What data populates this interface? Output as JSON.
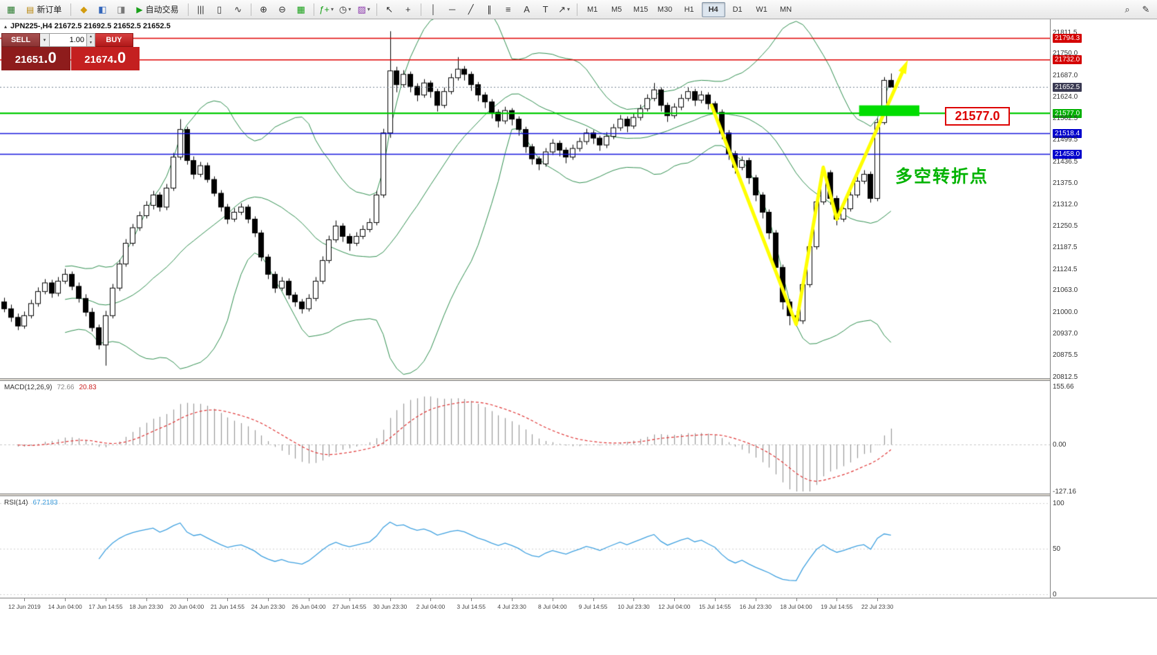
{
  "icons": {
    "caret_down": "▾",
    "caret_up": "▴",
    "spin_up": "▲",
    "spin_down": "▼"
  },
  "toolbar": {
    "new_order_label": "新订单",
    "auto_trading_label": "自动交易",
    "timeframes": [
      "M1",
      "M5",
      "M15",
      "M30",
      "H1",
      "H4",
      "D1",
      "W1",
      "MN"
    ],
    "active_timeframe": "H4",
    "items": [
      {
        "t": "icon",
        "name": "new-chart-icon",
        "glyph": "▦",
        "color": "#2e7d32"
      },
      {
        "t": "btn",
        "name": "new-order-button",
        "glyph": "▤",
        "color": "#b8860b",
        "label_key": "new_order_label"
      },
      {
        "t": "sep"
      },
      {
        "t": "icon",
        "name": "market-watch-icon",
        "glyph": "◆",
        "color": "#d39c10"
      },
      {
        "t": "icon",
        "name": "navigator-icon",
        "glyph": "◧",
        "color": "#3366bb"
      },
      {
        "t": "icon",
        "name": "terminal-icon",
        "glyph": "◨",
        "color": "#777777"
      },
      {
        "t": "btn",
        "name": "auto-trading-button",
        "glyph": "▶",
        "color": "#18a018",
        "label_key": "auto_trading_label"
      },
      {
        "t": "sep"
      },
      {
        "t": "icon",
        "name": "bar-chart-type-icon",
        "glyph": "|||",
        "color": "#333333"
      },
      {
        "t": "icon",
        "name": "candlestick-type-icon",
        "glyph": "▯",
        "color": "#333333"
      },
      {
        "t": "icon",
        "name": "line-chart-type-icon",
        "glyph": "∿",
        "color": "#333333"
      },
      {
        "t": "sep"
      },
      {
        "t": "icon",
        "name": "zoom-in-icon",
        "glyph": "⊕",
        "color": "#333333"
      },
      {
        "t": "icon",
        "name": "zoom-out-icon",
        "glyph": "⊖",
        "color": "#333333"
      },
      {
        "t": "icon",
        "name": "tile-windows-icon",
        "glyph": "▦",
        "color": "#18a018"
      },
      {
        "t": "sep"
      },
      {
        "t": "icon",
        "name": "indicators-icon",
        "glyph": "ƒ+",
        "color": "#18a018",
        "caret": true
      },
      {
        "t": "icon",
        "name": "periods-icon",
        "glyph": "◷",
        "color": "#333333",
        "caret": true
      },
      {
        "t": "icon",
        "name": "templates-icon",
        "glyph": "▨",
        "color": "#8833aa",
        "caret": true
      },
      {
        "t": "sep"
      },
      {
        "t": "icon",
        "name": "cursor-icon",
        "glyph": "↖",
        "color": "#333333"
      },
      {
        "t": "icon",
        "name": "crosshair-icon",
        "glyph": "+",
        "color": "#333333"
      },
      {
        "t": "sep"
      },
      {
        "t": "icon",
        "name": "vertical-line-icon",
        "glyph": "│",
        "color": "#333333"
      },
      {
        "t": "icon",
        "name": "horizontal-line-icon",
        "glyph": "─",
        "color": "#333333"
      },
      {
        "t": "icon",
        "name": "trendline-icon",
        "glyph": "╱",
        "color": "#333333"
      },
      {
        "t": "icon",
        "name": "channel-icon",
        "glyph": "∥",
        "color": "#333333"
      },
      {
        "t": "icon",
        "name": "fibonacci-icon",
        "glyph": "≡",
        "color": "#333333"
      },
      {
        "t": "icon",
        "name": "text-icon",
        "glyph": "A",
        "color": "#333333"
      },
      {
        "t": "icon",
        "name": "text-label-icon",
        "glyph": "T",
        "color": "#333333"
      },
      {
        "t": "icon",
        "name": "arrows-icon",
        "glyph": "↗",
        "color": "#333333",
        "caret": true
      },
      {
        "t": "sep"
      },
      {
        "t": "tfgroup"
      },
      {
        "t": "spring"
      },
      {
        "t": "icon",
        "name": "search-icon",
        "glyph": "⌕",
        "color": "#333333"
      },
      {
        "t": "icon",
        "name": "edit-icon",
        "glyph": "✎",
        "color": "#333333"
      }
    ]
  },
  "chart": {
    "title": "JPN225-,H4 21672.5 21692.5 21652.5 21652.5",
    "symbol": "JPN225-",
    "timeframe": "H4"
  },
  "trade_panel": {
    "sell_label": "SELL",
    "buy_label": "BUY",
    "volume": "1.00",
    "sell_price_int": "21651",
    "sell_price_frac": ".0",
    "buy_price_int": "21674",
    "buy_price_frac": ".0"
  },
  "annotations": {
    "level_label": "21577.0",
    "pivot_text": "多空转折点"
  },
  "macd": {
    "name": "MACD(12,26,9)",
    "main_value": "72.66",
    "signal_value": "20.83",
    "axis": [
      {
        "t": "155.66",
        "v": 155.66
      },
      {
        "t": "0.00",
        "v": 0
      },
      {
        "t": "-127.16",
        "v": -127.16
      }
    ]
  },
  "rsi": {
    "name": "RSI(14)",
    "value": "67.2183",
    "axis": [
      {
        "t": "100",
        "v": 100
      },
      {
        "t": "50",
        "v": 50
      },
      {
        "t": "0",
        "v": 0
      }
    ]
  },
  "price_axis": [
    {
      "t": "21811.5",
      "p": 21811.5,
      "s": "plain"
    },
    {
      "t": "21794.3",
      "p": 21794.3,
      "s": "red"
    },
    {
      "t": "21750.0",
      "p": 21750.0,
      "s": "plain"
    },
    {
      "t": "21732.0",
      "p": 21732.0,
      "s": "red"
    },
    {
      "t": "21687.0",
      "p": 21687.0,
      "s": "plain"
    },
    {
      "t": "21652.5",
      "p": 21652.5,
      "s": "current"
    },
    {
      "t": "21624.0",
      "p": 21624.0,
      "s": "plain"
    },
    {
      "t": "21577.0",
      "p": 21577.0,
      "s": "green"
    },
    {
      "t": "21562.5",
      "p": 21562.5,
      "s": "plain"
    },
    {
      "t": "21518.4",
      "p": 21518.4,
      "s": "blue"
    },
    {
      "t": "21499.5",
      "p": 21499.5,
      "s": "plain"
    },
    {
      "t": "21458.0",
      "p": 21458.0,
      "s": "blue"
    },
    {
      "t": "21436.5",
      "p": 21436.5,
      "s": "plain"
    },
    {
      "t": "21375.0",
      "p": 21375.0,
      "s": "plain"
    },
    {
      "t": "21312.0",
      "p": 21312.0,
      "s": "plain"
    },
    {
      "t": "21250.5",
      "p": 21250.5,
      "s": "plain"
    },
    {
      "t": "21187.5",
      "p": 21187.5,
      "s": "plain"
    },
    {
      "t": "21124.5",
      "p": 21124.5,
      "s": "plain"
    },
    {
      "t": "21063.0",
      "p": 21063.0,
      "s": "plain"
    },
    {
      "t": "21000.0",
      "p": 21000.0,
      "s": "plain"
    },
    {
      "t": "20937.0",
      "p": 20937.0,
      "s": "plain"
    },
    {
      "t": "20875.5",
      "p": 20875.5,
      "s": "plain"
    },
    {
      "t": "20812.5",
      "p": 20812.5,
      "s": "plain"
    }
  ],
  "chart_data": {
    "type": "candlestick",
    "symbol": "JPN225-",
    "timeframe": "H4",
    "last_ohlc": {
      "open": 21672.5,
      "high": 21692.5,
      "low": 21652.5,
      "close": 21652.5
    },
    "ylim": [
      20812.5,
      21811.5
    ],
    "x_labels": [
      "12 Jun 2019",
      "14 Jun 04:00",
      "17 Jun 14:55",
      "18 Jun 23:30",
      "20 Jun 04:00",
      "21 Jun 14:55",
      "24 Jun 23:30",
      "26 Jun 04:00",
      "27 Jun 14:55",
      "30 Jun 23:30",
      "2 Jul 04:00",
      "3 Jul 14:55",
      "4 Jul 23:30",
      "8 Jul 04:00",
      "9 Jul 14:55",
      "10 Jul 23:30",
      "12 Jul 04:00",
      "15 Jul 14:55",
      "16 Jul 23:30",
      "18 Jul 04:00",
      "19 Jul 14:55",
      "22 Jul 23:30"
    ],
    "candles": [
      [
        21030,
        21042,
        21000,
        21010
      ],
      [
        21010,
        21022,
        20972,
        20985
      ],
      [
        20985,
        20996,
        20948,
        20960
      ],
      [
        20960,
        21002,
        20952,
        20990
      ],
      [
        20990,
        21036,
        20982,
        21025
      ],
      [
        21025,
        21072,
        21016,
        21060
      ],
      [
        21060,
        21096,
        21052,
        21085
      ],
      [
        21085,
        21094,
        21042,
        21055
      ],
      [
        21055,
        21102,
        21046,
        21090
      ],
      [
        21090,
        21126,
        21082,
        21110
      ],
      [
        21110,
        21118,
        21064,
        21075
      ],
      [
        21075,
        21086,
        21028,
        21040
      ],
      [
        21040,
        21052,
        20988,
        21000
      ],
      [
        21000,
        21012,
        20944,
        20955
      ],
      [
        20955,
        20964,
        20892,
        20905
      ],
      [
        20905,
        21004,
        20845,
        20990
      ],
      [
        20990,
        21082,
        20982,
        21070
      ],
      [
        21070,
        21152,
        21062,
        21140
      ],
      [
        21140,
        21212,
        21132,
        21200
      ],
      [
        21200,
        21256,
        21192,
        21245
      ],
      [
        21245,
        21292,
        21236,
        21280
      ],
      [
        21280,
        21322,
        21272,
        21310
      ],
      [
        21310,
        21352,
        21298,
        21340
      ],
      [
        21340,
        21348,
        21292,
        21305
      ],
      [
        21305,
        21372,
        21296,
        21360
      ],
      [
        21360,
        21462,
        21352,
        21450
      ],
      [
        21450,
        21560,
        21442,
        21530
      ],
      [
        21530,
        21538,
        21428,
        21440
      ],
      [
        21440,
        21452,
        21386,
        21400
      ],
      [
        21400,
        21436,
        21392,
        21425
      ],
      [
        21425,
        21434,
        21376,
        21385
      ],
      [
        21385,
        21394,
        21336,
        21345
      ],
      [
        21345,
        21354,
        21292,
        21305
      ],
      [
        21305,
        21314,
        21256,
        21270
      ],
      [
        21270,
        21302,
        21262,
        21290
      ],
      [
        21290,
        21316,
        21282,
        21305
      ],
      [
        21305,
        21312,
        21258,
        21270
      ],
      [
        21270,
        21278,
        21218,
        21230
      ],
      [
        21230,
        21238,
        21148,
        21160
      ],
      [
        21160,
        21168,
        21096,
        21110
      ],
      [
        21110,
        21118,
        21056,
        21070
      ],
      [
        21070,
        21102,
        21062,
        21090
      ],
      [
        21090,
        21098,
        21038,
        21050
      ],
      [
        21050,
        21058,
        21016,
        21030
      ],
      [
        21030,
        21038,
        20996,
        21010
      ],
      [
        21010,
        21052,
        21002,
        21040
      ],
      [
        21040,
        21102,
        21032,
        21090
      ],
      [
        21090,
        21162,
        21082,
        21150
      ],
      [
        21150,
        21222,
        21142,
        21210
      ],
      [
        21210,
        21266,
        21202,
        21250
      ],
      [
        21250,
        21258,
        21204,
        21220
      ],
      [
        21220,
        21228,
        21178,
        21200
      ],
      [
        21200,
        21232,
        21192,
        21220
      ],
      [
        21220,
        21252,
        21212,
        21240
      ],
      [
        21240,
        21272,
        21232,
        21260
      ],
      [
        21260,
        21352,
        21252,
        21340
      ],
      [
        21340,
        21532,
        21332,
        21520
      ],
      [
        21520,
        21815,
        21506,
        21700
      ],
      [
        21700,
        21712,
        21638,
        21660
      ],
      [
        21660,
        21702,
        21652,
        21690
      ],
      [
        21690,
        21698,
        21638,
        21655
      ],
      [
        21655,
        21664,
        21612,
        21630
      ],
      [
        21630,
        21676,
        21622,
        21665
      ],
      [
        21665,
        21672,
        21622,
        21640
      ],
      [
        21640,
        21648,
        21582,
        21600
      ],
      [
        21600,
        21652,
        21592,
        21640
      ],
      [
        21640,
        21692,
        21632,
        21680
      ],
      [
        21680,
        21740,
        21672,
        21705
      ],
      [
        21705,
        21714,
        21672,
        21690
      ],
      [
        21690,
        21698,
        21642,
        21660
      ],
      [
        21660,
        21668,
        21612,
        21630
      ],
      [
        21630,
        21638,
        21592,
        21610
      ],
      [
        21610,
        21618,
        21562,
        21580
      ],
      [
        21580,
        21588,
        21536,
        21555
      ],
      [
        21555,
        21596,
        21546,
        21585
      ],
      [
        21585,
        21592,
        21542,
        21560
      ],
      [
        21560,
        21568,
        21512,
        21530
      ],
      [
        21530,
        21538,
        21462,
        21480
      ],
      [
        21480,
        21488,
        21428,
        21445
      ],
      [
        21445,
        21452,
        21412,
        21430
      ],
      [
        21430,
        21476,
        21422,
        21465
      ],
      [
        21465,
        21502,
        21456,
        21490
      ],
      [
        21490,
        21498,
        21452,
        21470
      ],
      [
        21470,
        21478,
        21432,
        21450
      ],
      [
        21450,
        21486,
        21442,
        21475
      ],
      [
        21475,
        21506,
        21466,
        21495
      ],
      [
        21495,
        21532,
        21486,
        21520
      ],
      [
        21520,
        21528,
        21488,
        21505
      ],
      [
        21505,
        21512,
        21468,
        21485
      ],
      [
        21485,
        21522,
        21476,
        21510
      ],
      [
        21510,
        21546,
        21502,
        21535
      ],
      [
        21535,
        21572,
        21526,
        21560
      ],
      [
        21560,
        21568,
        21522,
        21540
      ],
      [
        21540,
        21576,
        21532,
        21565
      ],
      [
        21565,
        21602,
        21556,
        21590
      ],
      [
        21590,
        21632,
        21582,
        21620
      ],
      [
        21620,
        21665,
        21612,
        21645
      ],
      [
        21645,
        21652,
        21582,
        21600
      ],
      [
        21600,
        21608,
        21552,
        21570
      ],
      [
        21570,
        21606,
        21562,
        21595
      ],
      [
        21595,
        21632,
        21586,
        21620
      ],
      [
        21620,
        21652,
        21612,
        21640
      ],
      [
        21640,
        21648,
        21598,
        21615
      ],
      [
        21615,
        21642,
        21606,
        21630
      ],
      [
        21630,
        21638,
        21588,
        21605
      ],
      [
        21605,
        21612,
        21562,
        21580
      ],
      [
        21580,
        21588,
        21502,
        21520
      ],
      [
        21520,
        21528,
        21442,
        21460
      ],
      [
        21460,
        21468,
        21402,
        21420
      ],
      [
        21420,
        21452,
        21412,
        21440
      ],
      [
        21440,
        21448,
        21372,
        21390
      ],
      [
        21390,
        21398,
        21322,
        21340
      ],
      [
        21340,
        21348,
        21272,
        21290
      ],
      [
        21290,
        21298,
        21212,
        21230
      ],
      [
        21230,
        21238,
        21112,
        21130
      ],
      [
        21130,
        21138,
        21008,
        21030
      ],
      [
        21030,
        21038,
        20962,
        20990
      ],
      [
        20990,
        21002,
        20960,
        20975
      ],
      [
        20975,
        21092,
        20966,
        21080
      ],
      [
        21080,
        21202,
        21072,
        21190
      ],
      [
        21190,
        21332,
        21182,
        21320
      ],
      [
        21320,
        21425,
        21312,
        21405
      ],
      [
        21405,
        21412,
        21312,
        21330
      ],
      [
        21330,
        21338,
        21252,
        21270
      ],
      [
        21270,
        21312,
        21262,
        21300
      ],
      [
        21300,
        21352,
        21292,
        21340
      ],
      [
        21340,
        21392,
        21332,
        21380
      ],
      [
        21380,
        21412,
        21372,
        21400
      ],
      [
        21400,
        21408,
        21318,
        21330
      ],
      [
        21330,
        21562,
        21322,
        21550
      ],
      [
        21550,
        21682,
        21544,
        21672.5
      ],
      [
        21672.5,
        21692.5,
        21652.5,
        21652.5
      ]
    ],
    "indicators": {
      "bollinger": {
        "period": 20,
        "deviation": 2,
        "color": "#2f8f4f"
      },
      "macd": {
        "fast": 12,
        "slow": 26,
        "signal": 9,
        "current_main": 72.66,
        "current_signal": 20.83,
        "axis_max": 155.66,
        "axis_min": -127.16
      },
      "rsi": {
        "period": 14,
        "current": 67.2183
      }
    },
    "overlays": {
      "hlines": [
        {
          "price": 21794.3,
          "color": "#e00000",
          "width": 1.5
        },
        {
          "price": 21732.0,
          "color": "#e00000",
          "width": 1.5
        },
        {
          "price": 21577.0,
          "color": "#00cc00",
          "width": 2.2
        },
        {
          "price": 21518.4,
          "color": "#1515dd",
          "width": 1.5
        },
        {
          "price": 21458.0,
          "color": "#1515dd",
          "width": 1.5
        }
      ],
      "current_price": 21652.5,
      "zigzag": {
        "color": "#ffff00",
        "points": [
          [
            104.5,
            21600
          ],
          [
            117,
            20965
          ],
          [
            121,
            21420
          ],
          [
            123,
            21270
          ],
          [
            133,
            21710
          ]
        ]
      },
      "highlight_rect": {
        "color": "#00dd00",
        "i1": 126.3,
        "i2": 135.2,
        "p1": 21600,
        "p2": 21569
      }
    }
  }
}
